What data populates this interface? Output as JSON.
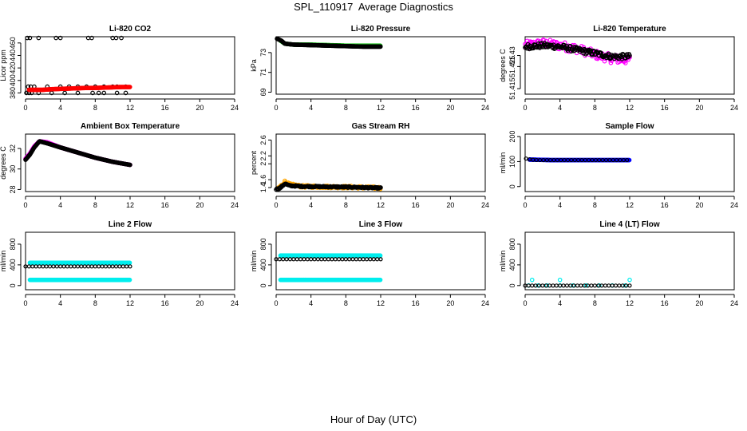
{
  "page": {
    "title": "SPL_110917  Average Diagnostics",
    "xlabel": "Hour of Day (UTC)"
  },
  "colors": {
    "black": "#000000",
    "red": "#ff0000",
    "green": "#1fbf1f",
    "magenta": "#ff00ff",
    "orange": "#ffa500",
    "blue": "#0000ff",
    "cyan": "#00eeee"
  },
  "chart_data": [
    {
      "type": "scatter",
      "title": "Li-820 CO2",
      "ylabel": "Licor ppm",
      "xlim": [
        0,
        24
      ],
      "ylim": [
        378,
        470
      ],
      "xticks": [
        0,
        4,
        8,
        12,
        16,
        20,
        24
      ],
      "yticks": [
        380,
        400,
        420,
        440,
        460
      ],
      "series": [
        {
          "color": "black",
          "mode": "sparse",
          "points": [
            [
              0.2,
              468
            ],
            [
              0.5,
              468
            ],
            [
              1.5,
              468
            ],
            [
              3.5,
              468
            ],
            [
              4,
              468
            ],
            [
              7.2,
              468
            ],
            [
              7.6,
              468
            ],
            [
              10,
              468
            ],
            [
              10.4,
              468
            ],
            [
              11,
              468
            ],
            [
              0.3,
              390
            ],
            [
              0.6,
              390
            ],
            [
              1,
              390
            ],
            [
              2.5,
              390
            ],
            [
              4,
              390
            ],
            [
              5,
              390
            ],
            [
              6,
              390
            ],
            [
              7,
              390
            ],
            [
              8,
              390
            ],
            [
              9,
              390
            ],
            [
              10,
              390
            ],
            [
              10.5,
              390
            ],
            [
              11.5,
              390
            ],
            [
              0.1,
              380
            ],
            [
              0.4,
              380
            ],
            [
              0.7,
              380
            ],
            [
              1.5,
              380
            ],
            [
              3,
              380
            ],
            [
              4.5,
              380
            ],
            [
              6,
              380
            ],
            [
              7.7,
              380
            ],
            [
              8.4,
              380
            ],
            [
              9,
              380
            ],
            [
              10.5,
              380
            ],
            [
              11.5,
              380
            ]
          ]
        },
        {
          "color": "red",
          "mode": "dense",
          "points": [
            [
              0.4,
              385
            ],
            [
              1,
              385
            ],
            [
              2,
              385
            ],
            [
              3,
              386
            ],
            [
              4,
              386.5
            ],
            [
              5,
              387
            ],
            [
              6,
              387.5
            ],
            [
              7,
              388
            ],
            [
              8,
              388
            ],
            [
              9,
              388.5
            ],
            [
              10,
              389
            ],
            [
              11,
              389.5
            ],
            [
              12,
              389.5
            ]
          ]
        }
      ]
    },
    {
      "type": "scatter",
      "title": "Li-820 Pressure",
      "ylabel": "kPa",
      "xlim": [
        0,
        24
      ],
      "ylim": [
        68.8,
        74.6
      ],
      "xticks": [
        0,
        4,
        8,
        12,
        16,
        20,
        24
      ],
      "yticks": [
        69,
        71,
        73
      ],
      "series": [
        {
          "color": "green",
          "mode": "dense",
          "points": [
            [
              0.5,
              74.2
            ],
            [
              1,
              73.9
            ],
            [
              2,
              73.8
            ],
            [
              4,
              73.8
            ],
            [
              6,
              73.75
            ],
            [
              8,
              73.7
            ],
            [
              10,
              73.7
            ],
            [
              12,
              73.7
            ]
          ]
        },
        {
          "color": "black",
          "mode": "dense",
          "points": [
            [
              0.1,
              74.4
            ],
            [
              0.6,
              74.2
            ],
            [
              1,
              73.9
            ],
            [
              2,
              73.8
            ],
            [
              4,
              73.75
            ],
            [
              6,
              73.7
            ],
            [
              8,
              73.65
            ],
            [
              10,
              73.6
            ],
            [
              12,
              73.6
            ]
          ]
        }
      ]
    },
    {
      "type": "scatter",
      "title": "Li-820 Temperature",
      "ylabel": "degrees C",
      "xlim": [
        0,
        24
      ],
      "ylim": [
        51.4125,
        51.4385
      ],
      "xticks": [
        0,
        4,
        8,
        12,
        16,
        20,
        24
      ],
      "yticks": [
        51.415,
        51.425,
        51.43
      ],
      "series": [
        {
          "color": "magenta",
          "mode": "noisy",
          "noise": 0.002,
          "points": [
            [
              0,
              51.4345
            ],
            [
              2,
              51.4355
            ],
            [
              4,
              51.4345
            ],
            [
              6,
              51.433
            ],
            [
              8,
              51.4305
            ],
            [
              10,
              51.4285
            ],
            [
              12,
              51.428
            ]
          ]
        },
        {
          "color": "black",
          "mode": "noisy",
          "noise": 0.0012,
          "points": [
            [
              0,
              51.434
            ],
            [
              2,
              51.4345
            ],
            [
              4,
              51.434
            ],
            [
              6,
              51.4325
            ],
            [
              8,
              51.431
            ],
            [
              10,
              51.4295
            ],
            [
              12,
              51.4295
            ]
          ]
        }
      ]
    },
    {
      "type": "scatter",
      "title": "Ambient Box Temperature",
      "ylabel": "degrees C",
      "xlim": [
        0,
        24
      ],
      "ylim": [
        27.8,
        33.4
      ],
      "xticks": [
        0,
        4,
        8,
        12,
        16,
        20,
        24
      ],
      "yticks": [
        28,
        30,
        32
      ],
      "series": [
        {
          "color": "magenta",
          "mode": "dense",
          "points": [
            [
              0,
              31
            ],
            [
              0.5,
              31.5
            ],
            [
              1,
              32.2
            ],
            [
              1.6,
              32.7
            ],
            [
              2.5,
              32.6
            ],
            [
              4,
              32.1
            ],
            [
              6,
              31.6
            ],
            [
              8,
              31.1
            ],
            [
              10,
              30.7
            ],
            [
              12,
              30.4
            ]
          ]
        },
        {
          "color": "black",
          "mode": "dense",
          "points": [
            [
              0,
              30.9
            ],
            [
              0.5,
              31.4
            ],
            [
              1,
              32.1
            ],
            [
              1.6,
              32.7
            ],
            [
              2.5,
              32.5
            ],
            [
              4,
              32.1
            ],
            [
              6,
              31.6
            ],
            [
              8,
              31.1
            ],
            [
              10,
              30.7
            ],
            [
              12,
              30.4
            ]
          ]
        }
      ]
    },
    {
      "type": "scatter",
      "title": "Gas Stream RH",
      "ylabel": "percent",
      "xlim": [
        0,
        24
      ],
      "ylim": [
        1.3,
        2.75
      ],
      "xticks": [
        0,
        4,
        8,
        12,
        16,
        20,
        24
      ],
      "yticks": [
        1.4,
        1.6,
        2.0,
        2.2,
        2.6
      ],
      "series": [
        {
          "color": "orange",
          "mode": "noisy",
          "noise": 0.03,
          "points": [
            [
              0.2,
              1.38
            ],
            [
              0.6,
              1.45
            ],
            [
              1,
              1.55
            ],
            [
              1.5,
              1.48
            ],
            [
              3,
              1.43
            ],
            [
              6,
              1.42
            ],
            [
              9,
              1.41
            ],
            [
              12,
              1.39
            ]
          ]
        },
        {
          "color": "black",
          "mode": "noisy",
          "noise": 0.015,
          "points": [
            [
              0,
              1.36
            ],
            [
              0.4,
              1.38
            ],
            [
              1,
              1.5
            ],
            [
              1.5,
              1.45
            ],
            [
              3,
              1.43
            ],
            [
              6,
              1.42
            ],
            [
              9,
              1.41
            ],
            [
              12,
              1.39
            ]
          ]
        }
      ]
    },
    {
      "type": "scatter",
      "title": "Sample Flow",
      "ylabel": "ml/min",
      "xlim": [
        0,
        24
      ],
      "ylim": [
        -20,
        210
      ],
      "xticks": [
        0,
        4,
        8,
        12,
        16,
        20,
        24
      ],
      "yticks": [
        0,
        100,
        200
      ],
      "series": [
        {
          "color": "blue",
          "mode": "dense",
          "points": [
            [
              0.5,
              108
            ],
            [
              3,
              106
            ],
            [
              6,
              106
            ],
            [
              9,
              106
            ],
            [
              12,
              106
            ]
          ]
        },
        {
          "color": "black",
          "mode": "sparse_line",
          "points": [
            [
              0.1,
              112
            ],
            [
              0.6,
              108
            ],
            [
              1.5,
              106
            ],
            [
              3,
              106
            ],
            [
              6,
              106
            ],
            [
              9,
              106
            ],
            [
              12,
              106
            ]
          ]
        }
      ]
    },
    {
      "type": "scatter",
      "title": "Line 2 Flow",
      "ylabel": "ml/min",
      "xlim": [
        0,
        24
      ],
      "ylim": [
        -80,
        1030
      ],
      "xticks": [
        0,
        4,
        8,
        12,
        16,
        20,
        24
      ],
      "yticks": [
        0,
        400,
        800
      ],
      "series": [
        {
          "color": "cyan",
          "mode": "dense",
          "points": [
            [
              0.5,
              440
            ],
            [
              12,
              440
            ]
          ]
        },
        {
          "color": "cyan",
          "mode": "dense",
          "points": [
            [
              0.5,
              110
            ],
            [
              12,
              110
            ]
          ]
        },
        {
          "color": "black",
          "mode": "sparse_line",
          "points": [
            [
              0,
              370
            ],
            [
              12,
              370
            ]
          ]
        }
      ]
    },
    {
      "type": "scatter",
      "title": "Line 3 Flow",
      "ylabel": "ml/min",
      "xlim": [
        0,
        24
      ],
      "ylim": [
        -80,
        1030
      ],
      "xticks": [
        0,
        4,
        8,
        12,
        16,
        20,
        24
      ],
      "yticks": [
        0,
        400,
        800
      ],
      "series": [
        {
          "color": "cyan",
          "mode": "dense",
          "points": [
            [
              0.5,
              580
            ],
            [
              12,
              580
            ]
          ]
        },
        {
          "color": "cyan",
          "mode": "dense",
          "points": [
            [
              0.5,
              110
            ],
            [
              12,
              110
            ]
          ]
        },
        {
          "color": "black",
          "mode": "sparse_line",
          "points": [
            [
              0,
              510
            ],
            [
              12,
              510
            ]
          ]
        }
      ]
    },
    {
      "type": "scatter",
      "title": "Line 4 (LT) Flow",
      "ylabel": "ml/min",
      "xlim": [
        0,
        24
      ],
      "ylim": [
        -80,
        1030
      ],
      "xticks": [
        0,
        4,
        8,
        12,
        16,
        20,
        24
      ],
      "yticks": [
        0,
        400,
        800
      ],
      "series": [
        {
          "color": "cyan",
          "mode": "sparse",
          "points": [
            [
              0.4,
              2
            ],
            [
              1.5,
              2
            ],
            [
              2.5,
              2
            ],
            [
              4,
              2
            ],
            [
              5.5,
              2
            ],
            [
              7,
              2
            ],
            [
              8.5,
              2
            ],
            [
              10,
              2
            ],
            [
              11.5,
              2
            ],
            [
              0.8,
              110
            ],
            [
              4,
              110
            ],
            [
              12,
              110
            ]
          ]
        },
        {
          "color": "black",
          "mode": "sparse_line",
          "points": [
            [
              0,
              0
            ],
            [
              12,
              0
            ]
          ]
        }
      ]
    }
  ]
}
